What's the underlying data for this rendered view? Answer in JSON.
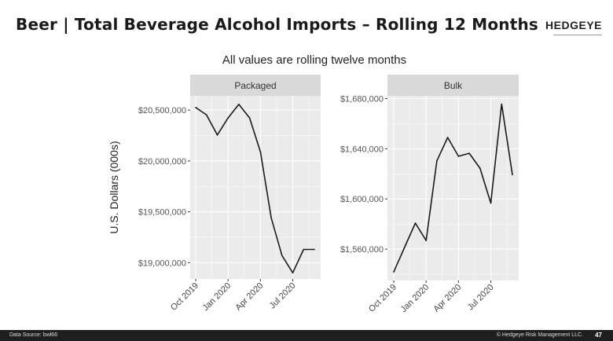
{
  "header": {
    "title": "Beer | Total Beverage Alcohol Imports – Rolling 12 Months",
    "logo": "HEDGEYE"
  },
  "footer": {
    "source": "Data Source: bwl66",
    "copyright": "© Hedgeye Risk Management LLC.",
    "page": "47"
  },
  "chart_data": [
    {
      "type": "line",
      "title": "All values are rolling twelve months",
      "panel": "Packaged",
      "ylabel": "U.S. Dollars (000s)",
      "x": [
        "Oct 2019",
        "Nov 2019",
        "Dec 2019",
        "Jan 2020",
        "Feb 2020",
        "Mar 2020",
        "Apr 2020",
        "May 2020",
        "Jun 2020",
        "Jul 2020",
        "Aug 2020",
        "Sep 2020"
      ],
      "xticks": [
        "Oct 2019",
        "Jan 2020",
        "Apr 2020",
        "Jul 2020"
      ],
      "values": [
        20526000,
        20454000,
        20255000,
        20423000,
        20557000,
        20423000,
        20090000,
        19440000,
        19070000,
        18900000,
        19130000,
        19130000
      ],
      "yticks": [
        19000000,
        19500000,
        20000000,
        20500000
      ],
      "ytick_labels": [
        "$19,000,000",
        "$19,500,000",
        "$20,000,000",
        "$20,500,000"
      ],
      "ylim": [
        18840000,
        20640000
      ],
      "grid": true,
      "color": "#1a1a1a"
    },
    {
      "type": "line",
      "panel": "Bulk",
      "x": [
        "Oct 2019",
        "Nov 2019",
        "Dec 2019",
        "Jan 2020",
        "Feb 2020",
        "Mar 2020",
        "Apr 2020",
        "May 2020",
        "Jun 2020",
        "Jul 2020",
        "Aug 2020",
        "Sep 2020"
      ],
      "xticks": [
        "Oct 2019",
        "Jan 2020",
        "Apr 2020",
        "Jul 2020"
      ],
      "values": [
        1541800,
        1561300,
        1580700,
        1566900,
        1630400,
        1649000,
        1634000,
        1636400,
        1624500,
        1596700,
        1675600,
        1619300
      ],
      "yticks": [
        1560000,
        1600000,
        1640000,
        1680000
      ],
      "ytick_labels": [
        "$1,560,000",
        "$1,600,000",
        "$1,640,000",
        "$1,680,000"
      ],
      "ylim": [
        1535000,
        1682200
      ],
      "grid": true,
      "color": "#1a1a1a"
    }
  ]
}
